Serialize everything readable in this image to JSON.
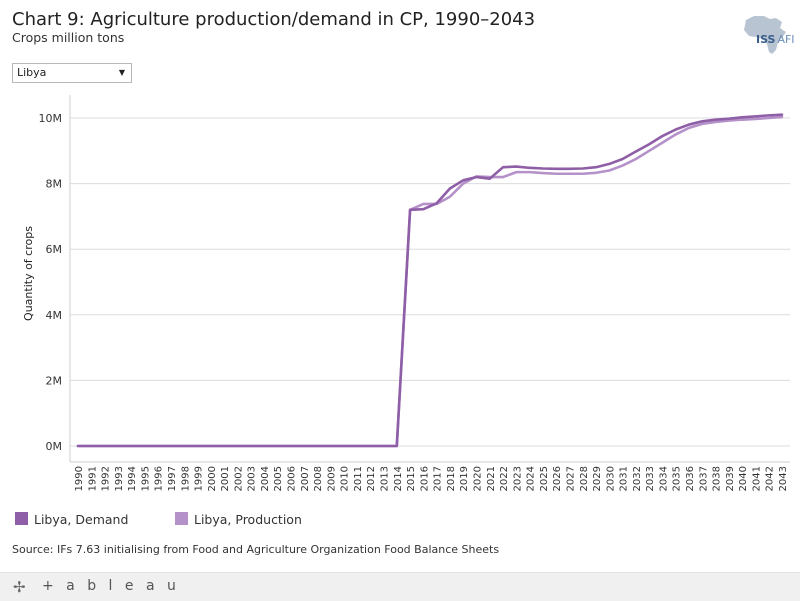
{
  "header": {
    "title": "Chart 9: Agriculture production/demand in CP, 1990–2043",
    "subtitle": "Crops million tons"
  },
  "logo": {
    "text": "ISS",
    "sub": "AFI",
    "icon": "africa-map-icon"
  },
  "filter": {
    "selected": "Libya",
    "icon": "chevron-down-icon"
  },
  "footer": {
    "source": "Source: IFs 7.63 initialising from Food and Agriculture Organization Food Balance Sheets",
    "brand": "+ a b l e a u",
    "icon": "tableau-plus-icon"
  },
  "chart_data": {
    "type": "line",
    "title": "Chart 9: Agriculture production/demand in CP, 1990–2043",
    "ylabel": "Quantity of crops",
    "xlabel": "",
    "ylim": [
      0,
      10.7
    ],
    "yticks": [
      {
        "value": 0,
        "label": "0M"
      },
      {
        "value": 2,
        "label": "2M"
      },
      {
        "value": 4,
        "label": "4M"
      },
      {
        "value": 6,
        "label": "6M"
      },
      {
        "value": 8,
        "label": "8M"
      },
      {
        "value": 10,
        "label": "10M"
      }
    ],
    "x": [
      "1990",
      "1991",
      "1992",
      "1993",
      "1994",
      "1995",
      "1996",
      "1997",
      "1998",
      "1999",
      "2000",
      "2001",
      "2002",
      "2003",
      "2004",
      "2005",
      "2006",
      "2007",
      "2008",
      "2009",
      "2010",
      "2011",
      "2012",
      "2013",
      "2014",
      "2015",
      "2016",
      "2017",
      "2018",
      "2019",
      "2020",
      "2021",
      "2022",
      "2023",
      "2024",
      "2025",
      "2026",
      "2027",
      "2028",
      "2029",
      "2030",
      "2031",
      "2032",
      "2033",
      "2034",
      "2035",
      "2036",
      "2037",
      "2038",
      "2039",
      "2040",
      "2041",
      "2042",
      "2043"
    ],
    "grid": true,
    "legend": "bottom-left",
    "series": [
      {
        "name": "Libya, Demand",
        "color": "#8e5ea6",
        "values": [
          0,
          0,
          0,
          0,
          0,
          0,
          0,
          0,
          0,
          0,
          0,
          0,
          0,
          0,
          0,
          0,
          0,
          0,
          0,
          0,
          0,
          0,
          0,
          0,
          0,
          7.2,
          7.22,
          7.4,
          7.85,
          8.1,
          8.2,
          8.15,
          8.5,
          8.52,
          8.48,
          8.46,
          8.45,
          8.45,
          8.46,
          8.5,
          8.6,
          8.75,
          8.98,
          9.2,
          9.45,
          9.65,
          9.8,
          9.9,
          9.95,
          9.98,
          10.02,
          10.05,
          10.08,
          10.1
        ]
      },
      {
        "name": "Libya, Production",
        "color": "#b591c9",
        "values": [
          0,
          0,
          0,
          0,
          0,
          0,
          0,
          0,
          0,
          0,
          0,
          0,
          0,
          0,
          0,
          0,
          0,
          0,
          0,
          0,
          0,
          0,
          0,
          0,
          0,
          7.2,
          7.38,
          7.38,
          7.6,
          8.0,
          8.22,
          8.2,
          8.2,
          8.35,
          8.35,
          8.32,
          8.3,
          8.3,
          8.3,
          8.33,
          8.4,
          8.55,
          8.75,
          9.0,
          9.25,
          9.5,
          9.7,
          9.82,
          9.88,
          9.92,
          9.95,
          9.97,
          10.0,
          10.03
        ]
      }
    ]
  }
}
